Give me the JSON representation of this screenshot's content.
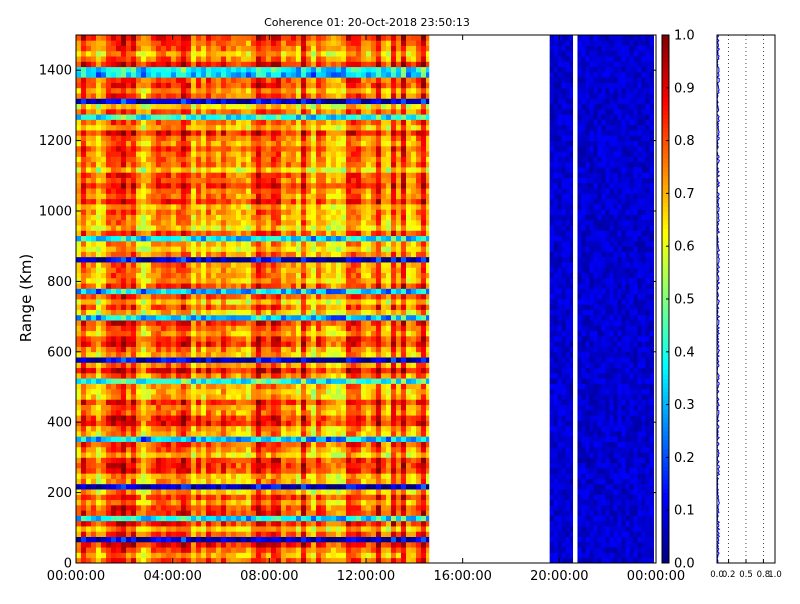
{
  "chart_data": [
    {
      "type": "heatmap",
      "title": "Coherence 01: 20-Oct-2018 23:50:13",
      "ylabel": "Range (Km)",
      "xlabel": "",
      "x_tick_labels": [
        "00:00:00",
        "04:00:00",
        "08:00:00",
        "12:00:00",
        "16:00:00",
        "20:00:00",
        "00:00:00"
      ],
      "x_range_hours": [
        0,
        24
      ],
      "ylim": [
        0,
        1500
      ],
      "y_ticks": [
        0,
        200,
        400,
        600,
        800,
        1000,
        1200,
        1400
      ],
      "data_segments_hours": [
        [
          0,
          14.6
        ],
        [
          19.6,
          20.55
        ],
        [
          20.75,
          23.9
        ]
      ],
      "segment_coherence_approx": [
        0.72,
        0.08,
        0.08
      ],
      "low_coherence_range_bands_km": [
        62,
        120,
        128,
        210,
        345,
        510,
        570,
        690,
        770,
        860,
        915,
        1260,
        1305,
        1380,
        1395
      ],
      "colormap": "jet",
      "colorbar": {
        "min": 0.0,
        "max": 1.0,
        "ticks": [
          "0.0",
          "0.1",
          "0.2",
          "0.3",
          "0.4",
          "0.5",
          "0.6",
          "0.7",
          "0.8",
          "0.9",
          "1.0"
        ]
      }
    },
    {
      "type": "line",
      "title": "",
      "xlabel": "",
      "ylabel": "",
      "x_tick_labels": [
        "0.0",
        "0.2",
        "0.5",
        "0.8",
        "1.0"
      ],
      "x_tick_values": [
        0.0,
        0.2,
        0.5,
        0.8,
        1.0
      ],
      "xlim": [
        0,
        1
      ],
      "ylim": [
        0,
        1500
      ],
      "grid": "vertical dotted",
      "series": [
        {
          "color": "#0000ff",
          "mean_value": 0.02
        }
      ]
    }
  ]
}
